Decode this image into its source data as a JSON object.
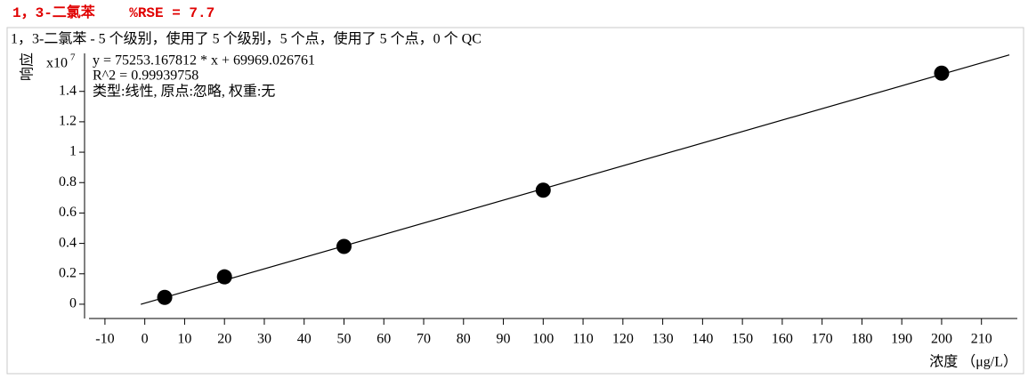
{
  "chart_data": {
    "type": "scatter",
    "title": "1，3-二氯苯    %RSE = 7.7",
    "subtitle": "1，3-二氯苯 - 5 个级别，使用了 5 个级别，5 个点，使用了 5 个点，0 个 QC",
    "annotations": [
      "y = 75253.167812 * x  + 69969.026761",
      "R^2 = 0.99939758",
      "类型:线性, 原点:忽略, 权重:无"
    ],
    "x_label": "浓度 （μg/L）",
    "y_label": "响应",
    "y_multiplier": {
      "base": "x10",
      "exponent": "7"
    },
    "series": [
      {
        "name": "1，3-二氯苯",
        "color": "#000000",
        "x": [
          5,
          20,
          50,
          100,
          200
        ],
        "values": [
          0.045,
          0.18,
          0.38,
          0.75,
          1.52
        ]
      }
    ],
    "fit": {
      "color": "#000000",
      "x": [
        -1,
        217
      ],
      "values": [
        -0.0005,
        1.64
      ]
    },
    "xlim": [
      -14,
      219
    ],
    "xticks": [
      -10,
      0,
      10,
      20,
      30,
      40,
      50,
      60,
      70,
      80,
      90,
      100,
      110,
      120,
      130,
      140,
      150,
      160,
      170,
      180,
      190,
      200,
      210
    ],
    "ylim": [
      -0.094,
      1.65
    ],
    "yticks": [
      0,
      0.2,
      0.4,
      0.6,
      0.8,
      1,
      1.2,
      1.4
    ]
  }
}
